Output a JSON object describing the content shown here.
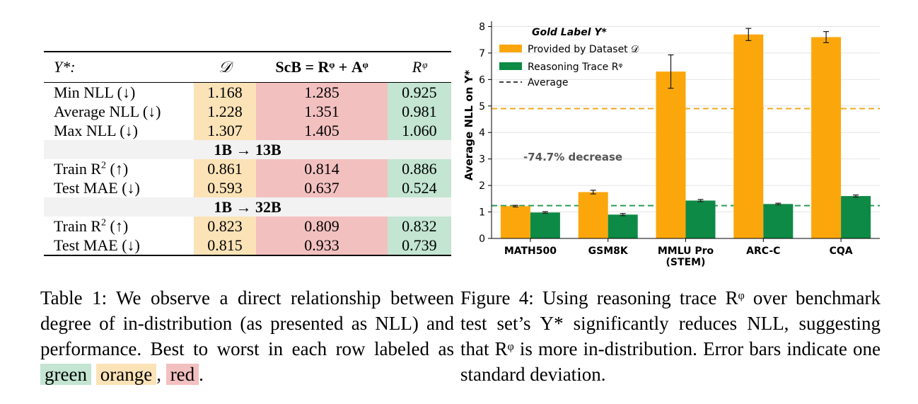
{
  "table": {
    "header": {
      "col_label": "Y*:",
      "col_d": "𝒟",
      "col_scb": "ScB = Rᵠ + Aᵠ",
      "col_r": "Rᵠ"
    },
    "group1_rows": [
      {
        "label": "Min NLL (↓)",
        "d": "1.168",
        "scb": "1.285",
        "r": "0.925"
      },
      {
        "label": "Average NLL (↓)",
        "d": "1.228",
        "scb": "1.351",
        "r": "0.981"
      },
      {
        "label": "Max NLL (↓)",
        "d": "1.307",
        "scb": "1.405",
        "r": "1.060"
      }
    ],
    "section2": "1B → 13B",
    "group2_rows": [
      {
        "label_pre": "Train R",
        "label_sup": "2",
        "label_post": " (↑)",
        "d": "0.861",
        "scb": "0.814",
        "r": "0.886"
      },
      {
        "label": "Test MAE (↓)",
        "d": "0.593",
        "scb": "0.637",
        "r": "0.524"
      }
    ],
    "section3": "1B → 32B",
    "group3_rows": [
      {
        "label_pre": "Train R",
        "label_sup": "2",
        "label_post": " (↑)",
        "d": "0.823",
        "scb": "0.809",
        "r": "0.832"
      },
      {
        "label": "Test MAE (↓)",
        "d": "0.815",
        "scb": "0.933",
        "r": "0.739"
      }
    ]
  },
  "caption_table": {
    "text": "Table 1: We observe a direct relationship between degree of in-distribution (as presented as NLL) and performance. Best to worst in each row labeled as",
    "green": "green",
    "orange": "orange",
    "comma": ",",
    "red": "red",
    "period": "."
  },
  "caption_fig": {
    "text": "Figure 4: Using reasoning trace Rᵠ over benchmark test set’s Y* significantly reduces NLL, suggesting that Rᵠ is more in-distribution. Error bars indicate one standard deviation."
  },
  "colors": {
    "orange": "#fba70c",
    "green": "#0d8a45",
    "orange_line": "#f0a81e",
    "green_line": "#2e9a55"
  },
  "chart_data": {
    "type": "bar",
    "categories": [
      "MATH500",
      "GSM8K",
      "MMLU Pro",
      "ARC-C",
      "CQA"
    ],
    "category_sublabels": [
      "",
      "",
      "(STEM)",
      "",
      ""
    ],
    "series": [
      {
        "name": "Provided by Dataset 𝒟",
        "values": [
          1.22,
          1.75,
          6.3,
          7.7,
          7.6
        ],
        "errors": [
          0.03,
          0.07,
          0.63,
          0.23,
          0.21
        ]
      },
      {
        "name": "Reasoning Trace Rᵠ",
        "values": [
          0.98,
          0.9,
          1.43,
          1.3,
          1.6
        ],
        "errors": [
          0.03,
          0.04,
          0.04,
          0.03,
          0.04
        ]
      }
    ],
    "averages": [
      4.9,
      1.24
    ],
    "average_label": "Average",
    "legend_title": "Gold Label Y*",
    "ylabel": "Average NLL on Y*",
    "ylim": [
      0,
      8.2
    ],
    "yticks": [
      "0",
      "1",
      "2",
      "3",
      "4",
      "5",
      "6",
      "7",
      "8"
    ],
    "annotation": "-74.7% decrease",
    "legend_position": "top-left"
  }
}
